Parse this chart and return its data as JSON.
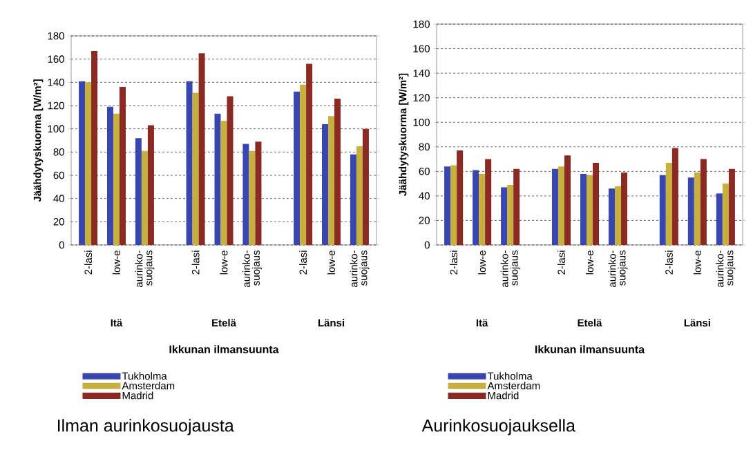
{
  "chart_data": [
    {
      "type": "bar",
      "title": "Ilman aurinkosuojausta",
      "xlabel": "Ikkunan ilmansuunta",
      "ylabel": "Jäähdytyskuorma [W/m²]",
      "categories": [
        "2-lasi",
        "low-e",
        "aurinko-suojaus",
        "2-lasi",
        "low-e",
        "aurinko-suojaus",
        "2-lasi",
        "low-e",
        "aurinko-suojaus"
      ],
      "annotations": [
        "Itä",
        "Etelä",
        "Länsi"
      ],
      "series": [
        {
          "name": "Tukholma",
          "color": "#3a46b0",
          "values": [
            141,
            119,
            92,
            141,
            113,
            87,
            132,
            104,
            78
          ]
        },
        {
          "name": "Amsterdam",
          "color": "#c8b040",
          "values": [
            140,
            113,
            81,
            131,
            107,
            81,
            138,
            111,
            85
          ]
        },
        {
          "name": "Madrid",
          "color": "#8b2a22",
          "values": [
            167,
            136,
            103,
            165,
            128,
            89,
            156,
            126,
            100
          ]
        }
      ],
      "ylim": [
        0,
        180
      ],
      "yticks": [
        0,
        20,
        40,
        60,
        80,
        100,
        120,
        140,
        160,
        180
      ],
      "grid": "y",
      "legend": "bottom"
    },
    {
      "type": "bar",
      "title": "Aurinkosuojauksella",
      "xlabel": "Ikkunan ilmansuunta",
      "ylabel": "Jäähdytyskuorma [W/m²]",
      "categories": [
        "2-lasi",
        "low-e",
        "aurinko-suojaus",
        "2-lasi",
        "low-e",
        "aurinko-suojaus",
        "2-lasi",
        "low-e",
        "aurinko-suojaus"
      ],
      "annotations": [
        "Itä",
        "Etelä",
        "Länsi"
      ],
      "series": [
        {
          "name": "Tukholma",
          "color": "#3a46b0",
          "values": [
            64,
            61,
            47,
            62,
            58,
            46,
            57,
            55,
            42
          ]
        },
        {
          "name": "Amsterdam",
          "color": "#c8b040",
          "values": [
            65,
            58,
            49,
            64,
            57,
            48,
            67,
            59,
            50
          ]
        },
        {
          "name": "Madrid",
          "color": "#8b2a22",
          "values": [
            77,
            70,
            62,
            73,
            67,
            59,
            79,
            70,
            62
          ]
        }
      ],
      "ylim": [
        0,
        180
      ],
      "yticks": [
        0,
        20,
        40,
        60,
        80,
        100,
        120,
        140,
        160,
        180
      ],
      "grid": "y",
      "legend": "bottom"
    }
  ]
}
